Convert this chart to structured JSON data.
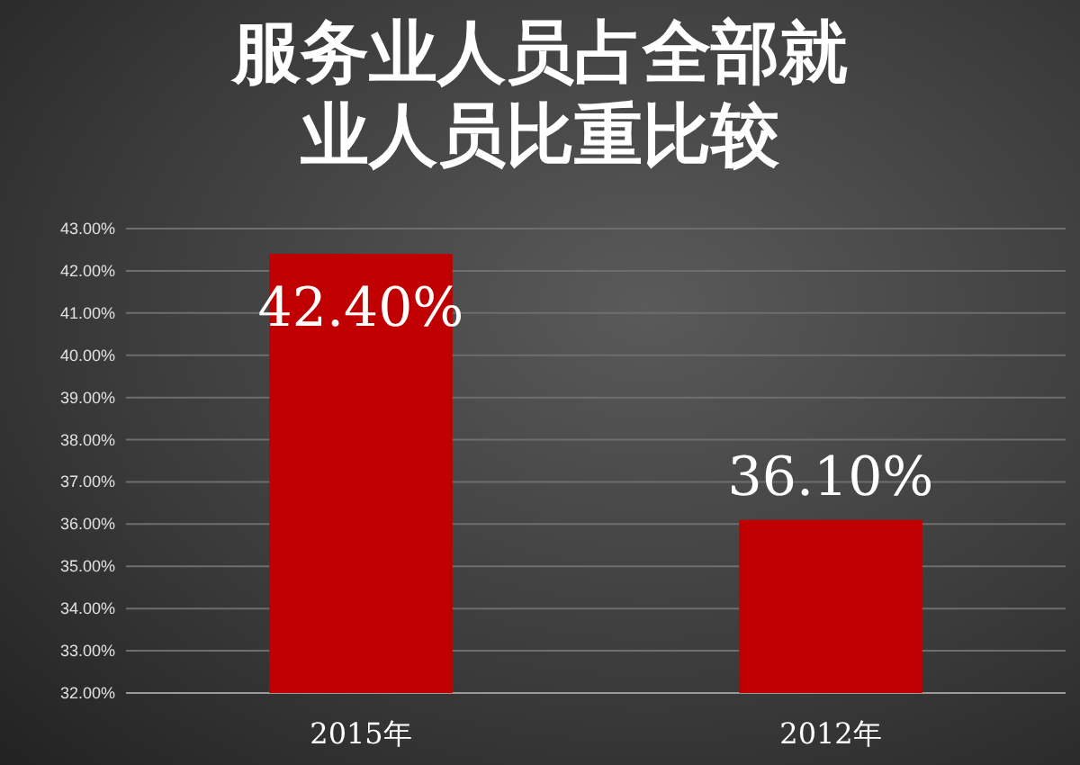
{
  "chart_data": {
    "type": "bar",
    "title": "服务业人员占全部就业人员比重比较",
    "categories": [
      "2015年",
      "2012年"
    ],
    "values": [
      42.4,
      36.1
    ],
    "color": "#c00000",
    "value_labels": [
      "42.40%",
      "36.10%"
    ],
    "ylim": [
      32,
      43
    ],
    "yticks": [
      {
        "value": 32,
        "label": "32.00%"
      },
      {
        "value": 33,
        "label": "33.00%"
      },
      {
        "value": 34,
        "label": "34.00%"
      },
      {
        "value": 35,
        "label": "35.00%"
      },
      {
        "value": 36,
        "label": "36.00%"
      },
      {
        "value": 37,
        "label": "37.00%"
      },
      {
        "value": 38,
        "label": "38.00%"
      },
      {
        "value": 39,
        "label": "39.00%"
      },
      {
        "value": 40,
        "label": "40.00%"
      },
      {
        "value": 41,
        "label": "41.00%"
      },
      {
        "value": 42,
        "label": "42.00%"
      },
      {
        "value": 43,
        "label": "43.00%"
      }
    ],
    "grid": "y"
  }
}
